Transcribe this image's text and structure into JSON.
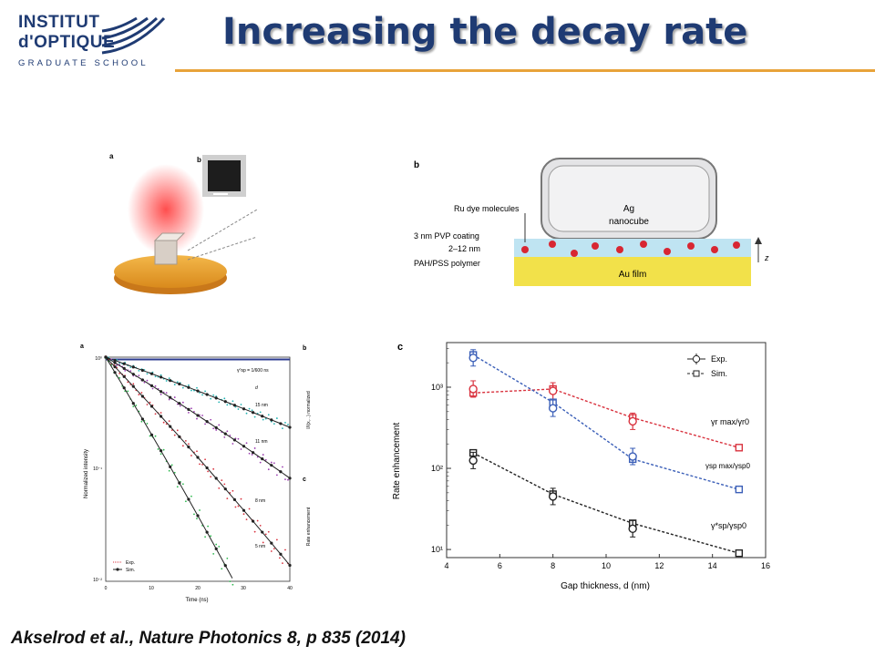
{
  "header": {
    "logo": {
      "line1": "INSTITUT",
      "line2": "d'OPTIQUE",
      "line3": "GRADUATE SCHOOL"
    },
    "title": "Increasing the decay rate",
    "accent_color": "#e8a33a",
    "title_color": "#1f3b73"
  },
  "citation": "Akselrod et al., Nature Photonics 8, p 835 (2014)",
  "panel_a": {
    "label_a": "a",
    "label_b": "b"
  },
  "panel_b": {
    "label": "b",
    "cube_text1": "Ag",
    "cube_text2": "nanocube",
    "ru_label": "Ru dye molecules",
    "pvp_label": "3 nm PVP coating",
    "gap_label": "2–12 nm",
    "polymer_label": "PAH/PSS polymer",
    "film_label": "Au film",
    "axis_label": "z"
  },
  "panel_left_chart": {
    "label": "a",
    "label_b": "b",
    "label_c": "c",
    "ylabel": "Normalized intensity",
    "xlabel": "Time (ns)",
    "right_ylabel_top": "I/I(x,...) normalized",
    "right_ylabel_bottom": "Rate enhancement",
    "legend_tau": "γ⁰sp = 1/600 ns",
    "legend_d": "d",
    "legend_exp": "Exp.",
    "legend_sim": "Sim.",
    "curve_labels": [
      "15 nm",
      "11 nm",
      "8 nm",
      "5 nm"
    ],
    "x_ticks": [
      "0",
      "10",
      "20",
      "30",
      "40"
    ],
    "y_ticks": [
      "10⁰",
      "10⁻¹",
      "10⁻²"
    ]
  },
  "chart_data": {
    "type": "scatter",
    "panel_label": "c",
    "title": "",
    "xlabel": "Gap thickness, d (nm)",
    "ylabel": "Rate enhancement",
    "x_ticks": [
      "4",
      "6",
      "8",
      "10",
      "12",
      "14",
      "16"
    ],
    "y_ticks": [
      "10¹",
      "10²",
      "10³"
    ],
    "xlim": [
      4,
      16
    ],
    "ylim_log10": [
      0.9,
      3.55
    ],
    "yscale": "log",
    "legend": [
      {
        "label": "Exp.",
        "style": "circle-errorbar"
      },
      {
        "label": "Sim.",
        "style": "dashed-square"
      }
    ],
    "legend_position": "top-right",
    "series": [
      {
        "name": "γr max/γr0",
        "color": "#d9333f",
        "exp_x": [
          5,
          8,
          11
        ],
        "exp_y": [
          950,
          900,
          380
        ],
        "sim_x": [
          5,
          8,
          11,
          15
        ],
        "sim_y": [
          850,
          950,
          420,
          180
        ]
      },
      {
        "name": "γsp max/γsp0",
        "color": "#3b5fb8",
        "exp_x": [
          5,
          8,
          11
        ],
        "exp_y": [
          2300,
          550,
          140
        ],
        "sim_x": [
          5,
          8,
          11,
          15
        ],
        "sim_y": [
          2500,
          650,
          130,
          55
        ]
      },
      {
        "name": "γ*sp/γsp0",
        "color": "#222222",
        "exp_x": [
          5,
          8,
          11
        ],
        "exp_y": [
          125,
          45,
          18
        ],
        "sim_x": [
          5,
          8,
          11,
          15
        ],
        "sim_y": [
          155,
          48,
          21,
          9
        ]
      }
    ]
  }
}
